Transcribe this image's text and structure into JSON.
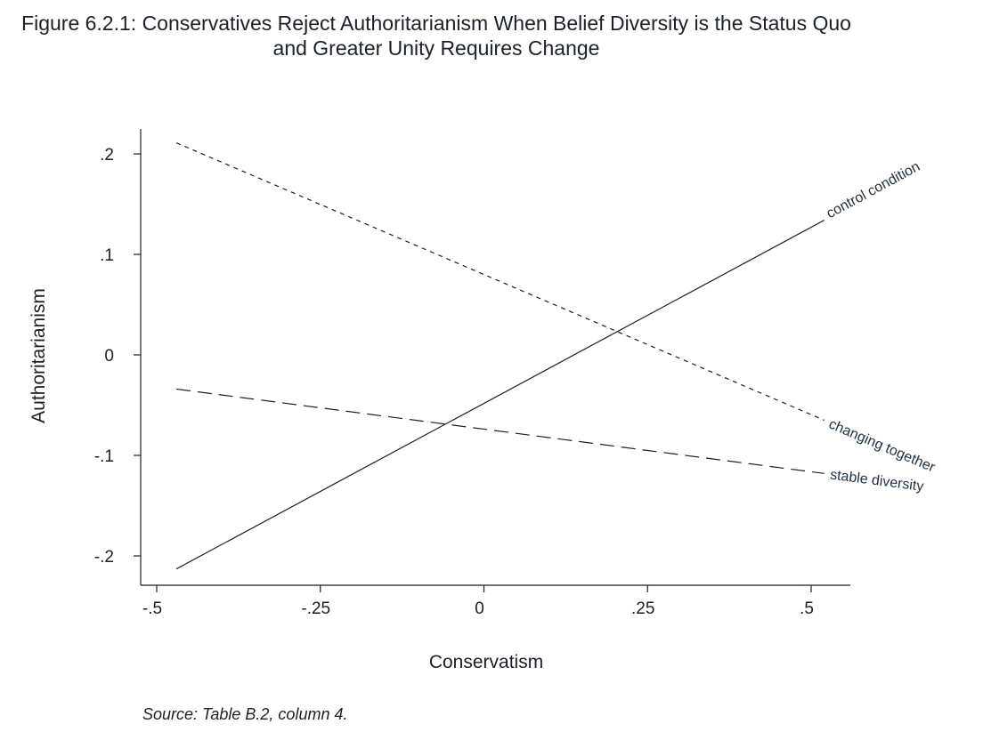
{
  "figure": {
    "title_line1": "Figure 6.2.1: Conservatives Reject Authoritarianism When Belief Diversity is the Status Quo",
    "title_line2": "and Greater Unity Requires Change",
    "source_note": "Source: Table B.2, column 4."
  },
  "chart_data": {
    "type": "line",
    "title": "Figure 6.2.1: Conservatives Reject Authoritarianism When Belief Diversity is the Status Quo and Greater Unity Requires Change",
    "xlabel": "Conservatism",
    "ylabel": "Authoritarianism",
    "xlim": [
      -0.5,
      0.5
    ],
    "ylim": [
      -0.2,
      0.2
    ],
    "xticks": [
      -0.5,
      -0.25,
      0,
      0.25,
      0.5
    ],
    "xtick_labels": [
      "-.5",
      "-.25",
      "0",
      ".25",
      ".5"
    ],
    "yticks": [
      -0.2,
      -0.1,
      0,
      0.1,
      0.2
    ],
    "ytick_labels": [
      "-.2",
      "-.1",
      "0",
      ".1",
      ".2"
    ],
    "grid": false,
    "legend": "none (series labeled directly at line ends)",
    "line_color": "#1a1f26",
    "series": [
      {
        "name": "control condition",
        "style": "solid",
        "x": [
          -0.47,
          0.52
        ],
        "y": [
          -0.213,
          0.134
        ]
      },
      {
        "name": "changing together",
        "style": "short-dash",
        "x": [
          -0.47,
          0.52
        ],
        "y": [
          0.211,
          -0.065
        ]
      },
      {
        "name": "stable diversity",
        "style": "long-dash",
        "x": [
          -0.47,
          0.52
        ],
        "y": [
          -0.034,
          -0.118
        ]
      }
    ]
  }
}
